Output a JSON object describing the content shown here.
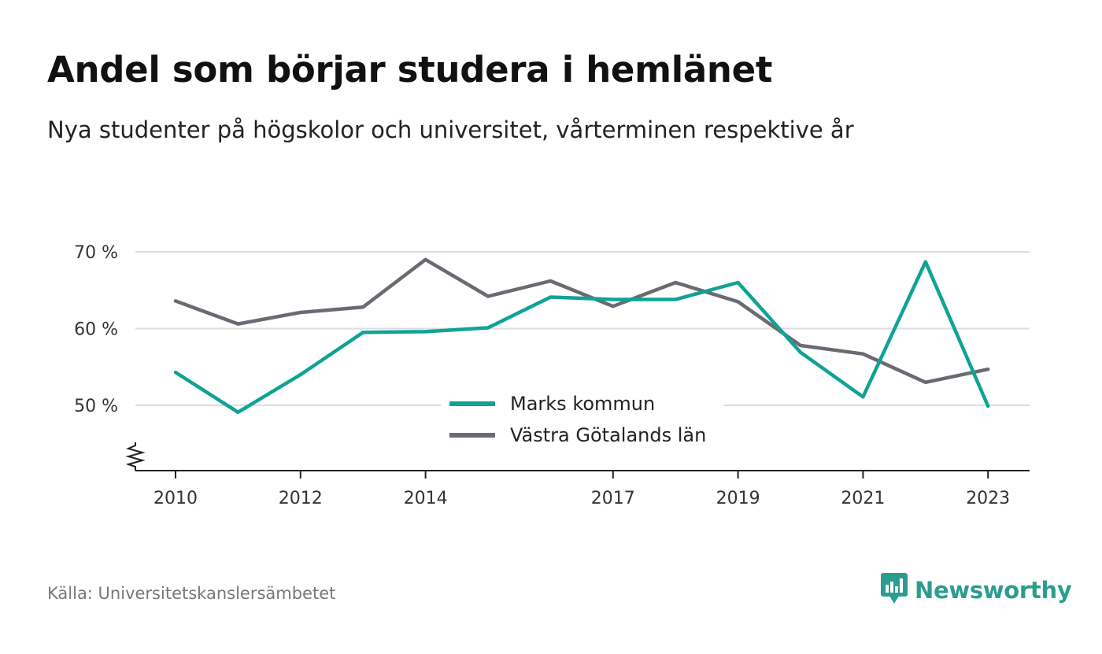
{
  "header": {
    "title": "Andel som börjar studera i hemlänet",
    "subtitle": "Nya studenter på högskolor och universitet, vårterminen respektive år"
  },
  "footer": {
    "source": "Källa: Universitetskanslersämbetet",
    "brand": "Newsworthy",
    "brand_icon": "bar-chart-speech-bubble-icon"
  },
  "colors": {
    "series_1": "#0fa396",
    "series_2": "#6b6a72",
    "grid": "#dddddd",
    "axis": "#222222",
    "brand": "#2a9d8f"
  },
  "chart_data": {
    "type": "line",
    "x": [
      2010,
      2011,
      2012,
      2013,
      2014,
      2015,
      2016,
      2017,
      2018,
      2019,
      2020,
      2021,
      2022,
      2023
    ],
    "x_tick_labels": [
      "2010",
      "2012",
      "2014",
      "2017",
      "2019",
      "2021",
      "2023"
    ],
    "y_tick_labels": [
      "70 %",
      "60 %",
      "50 %"
    ],
    "y_ticks": [
      70,
      60,
      50
    ],
    "ylim": [
      41.8,
      71.8
    ],
    "axis_break": true,
    "grid": true,
    "legend_position": "center-bottom",
    "series": [
      {
        "name": "Marks kommun",
        "values": [
          54.3,
          49.1,
          54.0,
          59.5,
          59.6,
          60.1,
          64.1,
          63.8,
          63.8,
          66.0,
          56.9,
          51.1,
          68.7,
          49.9
        ]
      },
      {
        "name": "Västra Götalands län",
        "values": [
          63.6,
          60.6,
          62.1,
          62.8,
          69.0,
          64.2,
          66.2,
          62.9,
          66.0,
          63.5,
          57.8,
          56.7,
          53.0,
          54.7
        ]
      }
    ]
  }
}
